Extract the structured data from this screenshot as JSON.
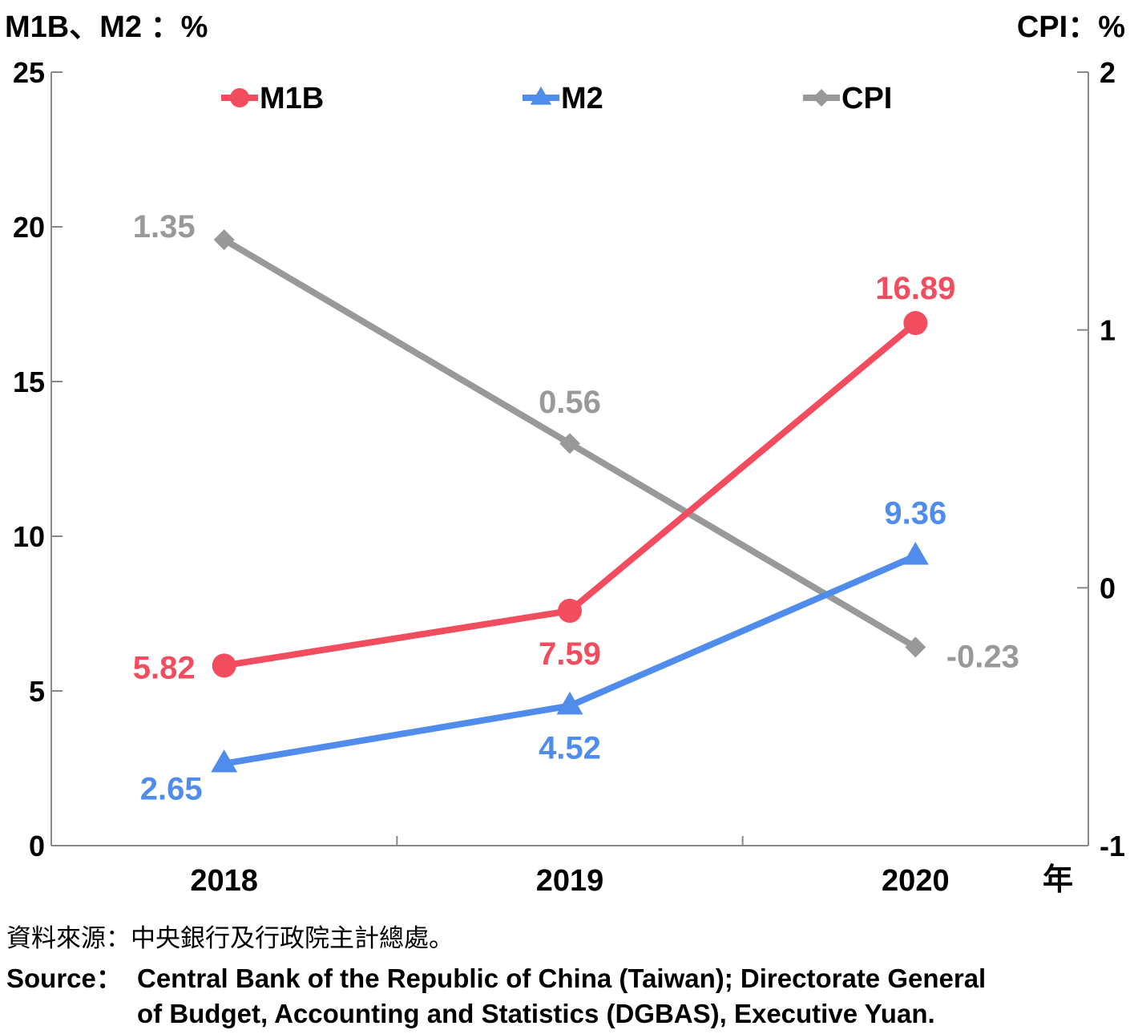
{
  "chart_data": {
    "type": "line",
    "left_axis_title": "M1B、M2 ：%",
    "right_axis_title": "CPI：%",
    "x_unit": "年",
    "categories": [
      "2018",
      "2019",
      "2020"
    ],
    "y_left": {
      "range": [
        0,
        25
      ],
      "ticks": [
        "0",
        "5",
        "10",
        "15",
        "20",
        "25"
      ]
    },
    "y_right": {
      "range": [
        -1,
        2
      ],
      "ticks": [
        "-1",
        "0",
        "1",
        "2"
      ]
    },
    "legend_placement": "top",
    "series": [
      {
        "name": "M1B",
        "axis": "left",
        "values": [
          5.82,
          7.59,
          16.89
        ],
        "labels": [
          "5.82",
          "7.59",
          "16.89"
        ],
        "color": "#f24d5e",
        "marker": "circle"
      },
      {
        "name": "M2",
        "axis": "left",
        "values": [
          2.65,
          4.52,
          9.36
        ],
        "labels": [
          "2.65",
          "4.52",
          "9.36"
        ],
        "color": "#4f8cec",
        "marker": "triangle"
      },
      {
        "name": "CPI",
        "axis": "right",
        "values": [
          1.35,
          0.56,
          -0.23
        ],
        "labels": [
          "1.35",
          "0.56",
          "-0.23"
        ],
        "color": "#999999",
        "marker": "diamond"
      }
    ]
  },
  "source": {
    "zh": "資料來源：中央銀行及行政院主計總處。",
    "en_label": "Source：",
    "en_line1": "Central Bank of the Republic of China (Taiwan); Directorate General",
    "en_line2": "of Budget, Accounting and Statistics (DGBAS), Executive Yuan."
  }
}
